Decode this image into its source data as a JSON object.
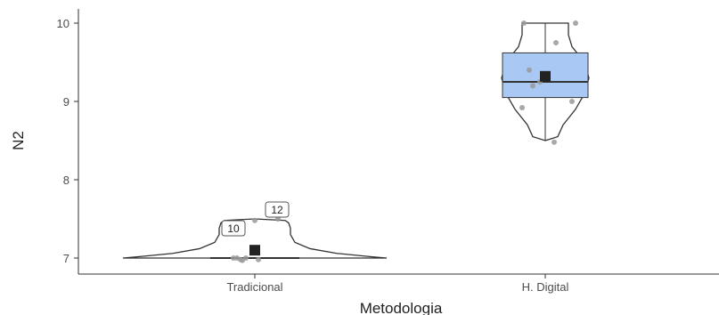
{
  "chart_data": {
    "type": "violin-box",
    "xlabel": "Metodologia",
    "ylabel": "N2",
    "ylim": [
      6.85,
      10.12
    ],
    "yticks": [
      7,
      8,
      9,
      10
    ],
    "grid": false,
    "categories": [
      "Tradicional",
      "H. Digital"
    ],
    "groups": [
      {
        "name": "Tradicional",
        "box": {
          "q1": 7.0,
          "median": 7.0,
          "q3": 7.0,
          "whisker_low": 7.0,
          "whisker_high": 7.0
        },
        "mean": 7.1,
        "points": [
          7.0,
          6.98,
          7.0,
          6.98,
          7.0,
          6.97,
          7.48,
          7.5
        ],
        "outliers": [
          {
            "label": "10",
            "value": 7.5
          },
          {
            "label": "12",
            "value": 7.5
          }
        ],
        "violin_range": [
          7.0,
          7.5
        ]
      },
      {
        "name": "H. Digital",
        "box": {
          "q1": 9.05,
          "median": 9.25,
          "q3": 9.62,
          "whisker_low": 8.5,
          "whisker_high": 10.0
        },
        "mean": 9.32,
        "points": [
          10.0,
          10.0,
          9.75,
          9.4,
          9.25,
          9.2,
          9.0,
          8.92,
          8.48
        ],
        "outliers": [],
        "violin_range": [
          8.5,
          10.0
        ]
      }
    ],
    "colors": {
      "box_fill": "#a9c8f3",
      "outline": "#333333",
      "points": "#999999",
      "mean": "#222222",
      "axis": "#333333"
    }
  }
}
